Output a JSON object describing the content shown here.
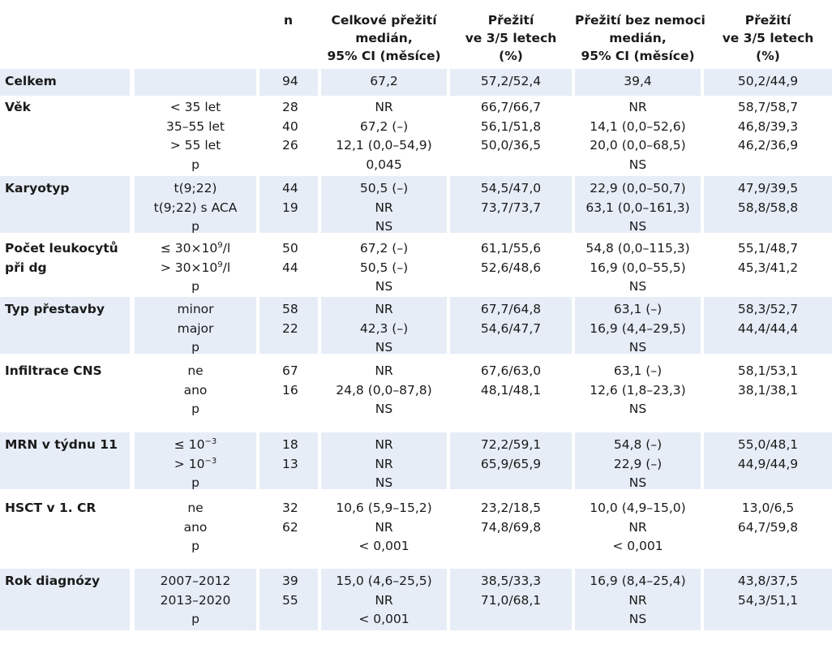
{
  "headers": [
    [
      "n"
    ],
    [
      "Celkové přežití",
      "medián,",
      "95% CI (měsíce)"
    ],
    [
      "Přežití",
      "ve 3/5 letech",
      "(%)"
    ],
    [
      "Přežití bez nemoci",
      "medián,",
      "95% CI (měsíce)"
    ],
    [
      "Přežití",
      "ve 3/5 letech",
      "(%)"
    ]
  ],
  "groups": [
    {
      "label": [
        "Celkem"
      ],
      "sub": [
        ""
      ],
      "n": [
        "94"
      ],
      "os": [
        "67,2"
      ],
      "os35": [
        "57,2/52,4"
      ],
      "dfs": [
        "39,4"
      ],
      "dfs35": [
        "50,2/44,9"
      ]
    },
    {
      "label": [
        "Věk"
      ],
      "sub": [
        "< 35 let",
        "35–55 let",
        "> 55 let",
        "p"
      ],
      "n": [
        "28",
        "40",
        "26",
        ""
      ],
      "os": [
        "NR",
        "67,2 (–)",
        "12,1 (0,0–54,9)",
        "0,045"
      ],
      "os35": [
        "66,7/66,7",
        "56,1/51,8",
        "50,0/36,5",
        ""
      ],
      "dfs": [
        "NR",
        "14,1 (0,0–52,6)",
        "20,0 (0,0–68,5)",
        "NS"
      ],
      "dfs35": [
        "58,7/58,7",
        "46,8/39,3",
        "46,2/36,9",
        ""
      ]
    },
    {
      "label": [
        "Karyotyp"
      ],
      "sub": [
        "t(9;22)",
        "t(9;22) s ACA",
        "p"
      ],
      "n": [
        "44",
        "19",
        ""
      ],
      "os": [
        "50,5 (–)",
        "NR",
        "NS"
      ],
      "os35": [
        "54,5/47,0",
        "73,7/73,7",
        ""
      ],
      "dfs": [
        "22,9 (0,0–50,7)",
        "63,1 (0,0–161,3)",
        "NS"
      ],
      "dfs35": [
        "47,9/39,5",
        "58,8/58,8",
        ""
      ]
    },
    {
      "label": [
        "Počet leukocytů",
        "při dg"
      ],
      "sub": [
        "≤ 30×10",
        "> 30×10",
        "p"
      ],
      "supers": [
        "9",
        "9",
        ""
      ],
      "suffix": [
        "/l",
        "/l",
        ""
      ],
      "n": [
        "50",
        "44",
        ""
      ],
      "os": [
        "67,2 (–)",
        "50,5 (–)",
        "NS"
      ],
      "os35": [
        "61,1/55,6",
        "52,6/48,6",
        ""
      ],
      "dfs": [
        "54,8 (0,0–115,3)",
        "16,9 (0,0–55,5)",
        "NS"
      ],
      "dfs35": [
        "55,1/48,7",
        "45,3/41,2",
        ""
      ]
    },
    {
      "label": [
        "Typ přestavby"
      ],
      "sub": [
        "minor",
        "major",
        "p"
      ],
      "n": [
        "58",
        "22",
        ""
      ],
      "os": [
        "NR",
        "42,3 (–)",
        "NS"
      ],
      "os35": [
        "67,7/64,8",
        "54,6/47,7",
        ""
      ],
      "dfs": [
        "63,1 (–)",
        "16,9 (4,4–29,5)",
        "NS"
      ],
      "dfs35": [
        "58,3/52,7",
        "44,4/44,4",
        ""
      ]
    },
    {
      "label": [
        "Infiltrace CNS"
      ],
      "sub": [
        "ne",
        "ano",
        "p"
      ],
      "n": [
        "67",
        "16",
        ""
      ],
      "os": [
        "NR",
        "24,8 (0,0–87,8)",
        "NS"
      ],
      "os35": [
        "67,6/63,0",
        "48,1/48,1",
        ""
      ],
      "dfs": [
        "63,1 (–)",
        "12,6 (1,8–23,3)",
        "NS"
      ],
      "dfs35": [
        "58,1/53,1",
        "38,1/38,1",
        ""
      ]
    },
    {
      "label": [
        "MRN  v týdnu 11"
      ],
      "sub": [
        "≤ 10",
        "> 10",
        "p"
      ],
      "supers": [
        "−3",
        "−3",
        ""
      ],
      "suffix": [
        "",
        "",
        ""
      ],
      "n": [
        "18",
        "13",
        ""
      ],
      "os": [
        "NR",
        "NR",
        "NS"
      ],
      "os35": [
        "72,2/59,1",
        "65,9/65,9",
        ""
      ],
      "dfs": [
        "54,8 (–)",
        "22,9 (–)",
        "NS"
      ],
      "dfs35": [
        "55,0/48,1",
        "44,9/44,9",
        ""
      ]
    },
    {
      "label": [
        "HSCT v 1. CR"
      ],
      "sub": [
        "ne",
        "ano",
        "p"
      ],
      "n": [
        "32",
        "62",
        ""
      ],
      "os": [
        "10,6 (5,9–15,2)",
        "NR",
        "< 0,001"
      ],
      "os35": [
        "23,2/18,5",
        "74,8/69,8",
        ""
      ],
      "dfs": [
        "10,0 (4,9–15,0)",
        "NR",
        "< 0,001"
      ],
      "dfs35": [
        "13,0/6,5",
        "64,7/59,8",
        ""
      ]
    },
    {
      "label": [
        "Rok diagnózy"
      ],
      "sub": [
        "2007–2012",
        "2013–2020",
        "p"
      ],
      "n": [
        "39",
        "55",
        ""
      ],
      "os": [
        "15,0 (4,6–25,5)",
        "NR",
        "< 0,001"
      ],
      "os35": [
        "38,5/33,3",
        "71,0/68,1",
        ""
      ],
      "dfs": [
        "16,9 (8,4–25,4)",
        "NR",
        "NS"
      ],
      "dfs35": [
        "43,8/37,5",
        "54,3/51,1",
        ""
      ]
    }
  ]
}
